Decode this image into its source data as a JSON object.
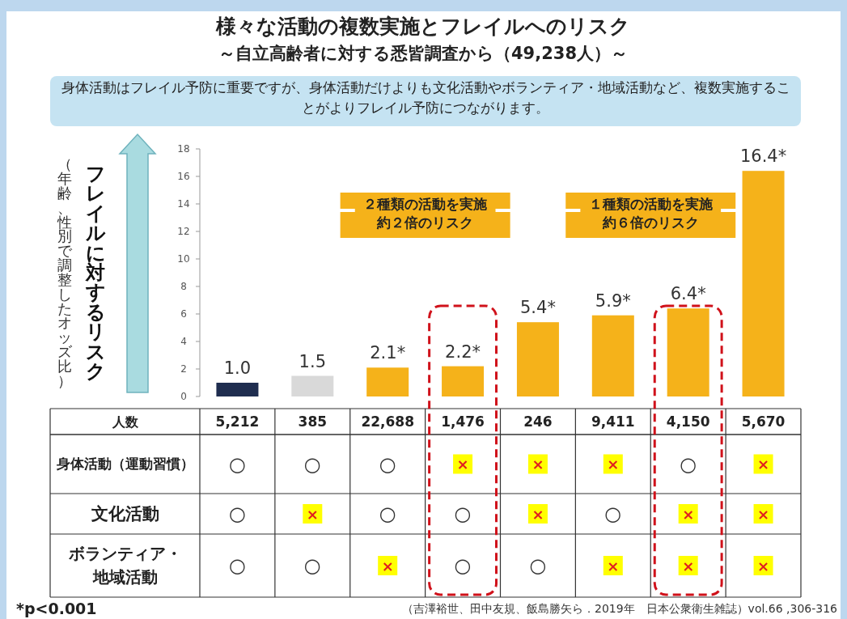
{
  "chart_data": [
    {
      "type": "bar",
      "title": "様々な活動の複数実施とフレイルへのリスク",
      "subtitle": "～自立高齢者に対する悉皆調査から（49,238人）～",
      "ylabel": "フレイルに対するリスク",
      "xlabel": "人数",
      "categories": [
        "5,212",
        "385",
        "22,688",
        "1,476",
        "246",
        "9,411",
        "4,150",
        "5,670"
      ],
      "values": [
        1.0,
        1.5,
        2.1,
        2.2,
        5.4,
        5.9,
        6.4,
        16.4
      ],
      "value_labels": [
        "1.0",
        "1.5",
        "2.1*",
        "2.2*",
        "5.4*",
        "5.9*",
        "6.4*",
        "16.4*"
      ],
      "colors": [
        "#1f2d4f",
        "#d9d9d9",
        "#f5b21a",
        "#f5b21a",
        "#f5b21a",
        "#f5b21a",
        "#f5b21a",
        "#f5b21a"
      ],
      "ylim": [
        0,
        18
      ],
      "yticks": [
        0,
        2,
        4,
        6,
        8,
        10,
        12,
        14,
        16,
        18
      ],
      "annotations": [
        "身体活動はフレイル予防に重要ですが、身体活動だけよりも文化活動やボランティア・地域活動など、複数実施することがよりフレイル予防につながります。",
        "（年齢、性別で調整したオッズ比）",
        "２種類の活動を実施約２倍のリスク",
        "１種類の活動を実施約６倍のリスク",
        "*p<0.001",
        "（吉澤裕世、田中友規、飯島勝矢ら．2019年　日本公衆衛生雑誌）vol.66 ,306-316"
      ]
    },
    {
      "type": "other",
      "y_categories": [
        "身体活動（運動習慣）",
        "文化活動",
        "ボランティア・地域活動"
      ],
      "cell_labels": [
        [
          "○",
          "○",
          "○",
          "×",
          "×",
          "×",
          "○",
          "×"
        ],
        [
          "○",
          "×",
          "○",
          "○",
          "×",
          "○",
          "×",
          "×"
        ],
        [
          "○",
          "○",
          "×",
          "○",
          "○",
          "×",
          "×",
          "×"
        ]
      ]
    }
  ]
}
